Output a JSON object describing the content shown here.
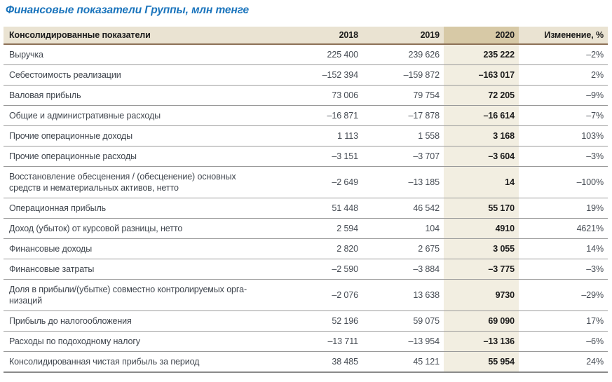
{
  "title": "Финансовые показатели Группы, млн тенге",
  "table": {
    "headers": {
      "metric": "Консолидированные показатели",
      "y2018": "2018",
      "y2019": "2019",
      "y2020": "2020",
      "change": "Изменение, %"
    },
    "rows": [
      {
        "label": "Выручка",
        "y2018": "225 400",
        "y2019": "239 626",
        "y2020": "235 222",
        "change": "–2%"
      },
      {
        "label": "Себестоимость реализации",
        "y2018": "–152 394",
        "y2019": "–159 872",
        "y2020": "–163 017",
        "change": "2%"
      },
      {
        "label": "Валовая прибыль",
        "y2018": "73 006",
        "y2019": "79 754",
        "y2020": "72 205",
        "change": "–9%"
      },
      {
        "label": "Общие и административные расходы",
        "y2018": "–16 871",
        "y2019": "–17 878",
        "y2020": "–16 614",
        "change": "–7%"
      },
      {
        "label": "Прочие операционные доходы",
        "y2018": "1 113",
        "y2019": "1 558",
        "y2020": "3 168",
        "change": "103%"
      },
      {
        "label": "Прочие операционные расходы",
        "y2018": "–3 151",
        "y2019": "–3 707",
        "y2020": "–3 604",
        "change": "–3%"
      },
      {
        "label": "Восстановление обесценения / (обесценение) основных\nсредств и нематериальных активов, нетто",
        "y2018": "–2 649",
        "y2019": "–13 185",
        "y2020": "14",
        "change": "–100%"
      },
      {
        "label": "Операционная прибыль",
        "y2018": "51 448",
        "y2019": "46 542",
        "y2020": "55 170",
        "change": "19%"
      },
      {
        "label": "Доход (убыток) от курсовой разницы, нетто",
        "y2018": "2 594",
        "y2019": "104",
        "y2020": "4910",
        "change": "4621%"
      },
      {
        "label": "Финансовые доходы",
        "y2018": "2 820",
        "y2019": "2 675",
        "y2020": "3 055",
        "change": "14%"
      },
      {
        "label": "Финансовые затраты",
        "y2018": "–2 590",
        "y2019": "–3 884",
        "y2020": "–3 775",
        "change": "–3%"
      },
      {
        "label": "Доля в прибыли/(убытке) совместно контролируемых орга-\nнизаций",
        "y2018": "–2 076",
        "y2019": "13 638",
        "y2020": "9730",
        "change": "–29%"
      },
      {
        "label": "Прибыль до налогообложения",
        "y2018": "52 196",
        "y2019": "59 075",
        "y2020": "69 090",
        "change": "17%"
      },
      {
        "label": "Расходы по подоходному налогу",
        "y2018": "–13 711",
        "y2019": "–13 954",
        "y2020": "–13 136",
        "change": "–6%"
      },
      {
        "label": "Консолидированная чистая прибыль за период",
        "y2018": "38 485",
        "y2019": "45 121",
        "y2020": "55 954",
        "change": "24%"
      }
    ]
  },
  "colors": {
    "title_blue": "#1a74bc",
    "header_beige": "#eae3d2",
    "header_2020_tan": "#d7c9a6",
    "body_2020_stripe": "#f2eee1",
    "header_underline_brown": "#8d7157",
    "row_line_gray": "#9a9a9a"
  }
}
